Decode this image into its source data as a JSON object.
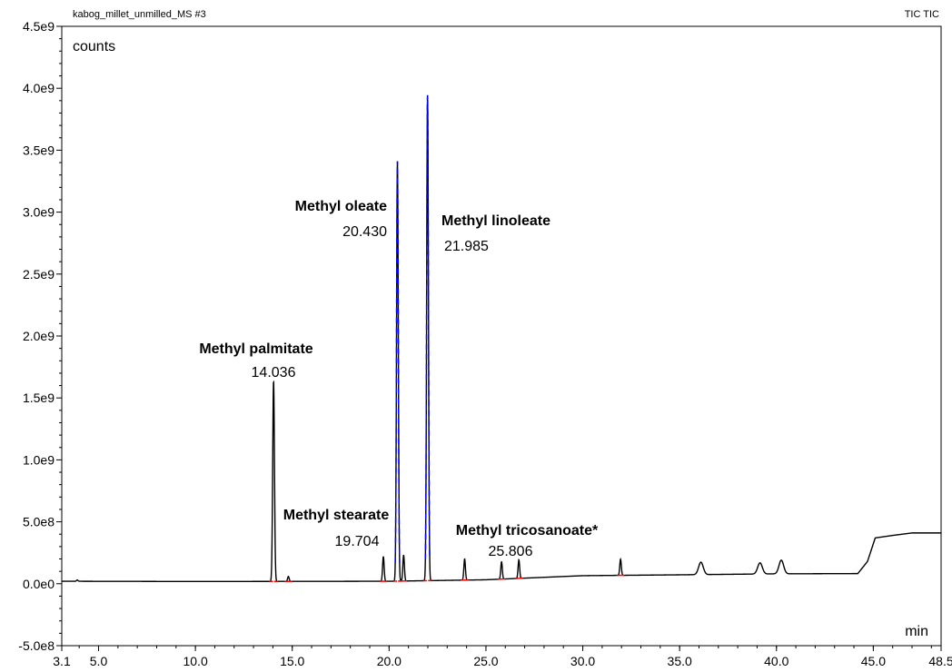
{
  "header": {
    "left": "kabog_millet_unmilled_MS #3",
    "right": "TIC TIC"
  },
  "chart_data": {
    "type": "line",
    "title": "kabog_millet_unmilled_MS #3",
    "xlabel": "min",
    "ylabel": "counts",
    "xlim": [
      3.1,
      48.5
    ],
    "ylim": [
      -500000000.0,
      4500000000.0
    ],
    "x_ticks": [
      "3.1",
      "5.0",
      "10.0",
      "15.0",
      "20.0",
      "25.0",
      "30.0",
      "35.0",
      "40.0",
      "45.0",
      "48.5"
    ],
    "y_ticks": [
      "-5.0e8",
      "0.0e0",
      "5.0e8",
      "1.0e9",
      "1.5e9",
      "2.0e9",
      "2.5e9",
      "3.0e9",
      "3.5e9",
      "4.0e9",
      "4.5e9"
    ],
    "grid": false,
    "baseline": [
      {
        "x": 3.1,
        "y": 20000000.0
      },
      {
        "x": 10.0,
        "y": 18000000.0
      },
      {
        "x": 20.0,
        "y": 20000000.0
      },
      {
        "x": 25.0,
        "y": 32000000.0
      },
      {
        "x": 30.0,
        "y": 65000000.0
      },
      {
        "x": 35.0,
        "y": 72000000.0
      },
      {
        "x": 40.0,
        "y": 80000000.0
      },
      {
        "x": 44.2,
        "y": 82000000.0
      },
      {
        "x": 44.7,
        "y": 180000000.0
      },
      {
        "x": 45.1,
        "y": 370000000.0
      },
      {
        "x": 46.0,
        "y": 390000000.0
      },
      {
        "x": 47.0,
        "y": 410000000.0
      },
      {
        "x": 48.5,
        "y": 410000000.0
      }
    ],
    "peaks": [
      {
        "rt": 3.9,
        "height": 10000000.0
      },
      {
        "rt": 14.036,
        "height": 1620000000.0
      },
      {
        "rt": 14.8,
        "height": 40000000.0
      },
      {
        "rt": 19.704,
        "height": 200000000.0
      },
      {
        "rt": 20.43,
        "height": 3390000000.0
      },
      {
        "rt": 20.75,
        "height": 210000000.0
      },
      {
        "rt": 21.985,
        "height": 3920000000.0
      },
      {
        "rt": 23.9,
        "height": 170000000.0
      },
      {
        "rt": 25.806,
        "height": 140000000.0
      },
      {
        "rt": 26.7,
        "height": 150000000.0
      },
      {
        "rt": 31.95,
        "height": 130000000.0
      },
      {
        "rt": 36.1,
        "height": 100000000.0
      },
      {
        "rt": 39.15,
        "height": 90000000.0
      },
      {
        "rt": 40.25,
        "height": 110000000.0
      }
    ],
    "annotations": [
      {
        "name": "Methyl palmitate",
        "rt": "14.036"
      },
      {
        "name": "Methyl stearate",
        "rt": "19.704"
      },
      {
        "name": "Methyl oleate",
        "rt": "20.430"
      },
      {
        "name": "Methyl linoleate",
        "rt": "21.985"
      },
      {
        "name": "Methyl tricosanoate*",
        "rt": "25.806"
      }
    ],
    "colors": {
      "trace": "#000000",
      "integration": "#0000ff",
      "marker": "#ff0000"
    }
  }
}
